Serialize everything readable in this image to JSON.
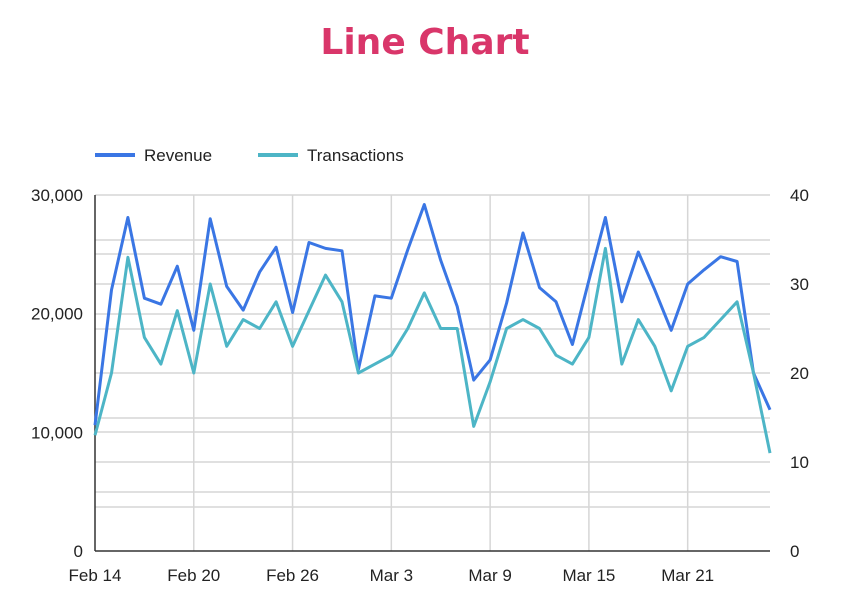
{
  "chart_data": {
    "type": "line",
    "title": "Line Chart",
    "x_tick_labels": [
      "Feb 14",
      "Feb 20",
      "Feb 26",
      "Mar 3",
      "Mar 9",
      "Mar 15",
      "Mar 21"
    ],
    "x_tick_index": [
      0,
      6,
      12,
      18,
      24,
      30,
      36
    ],
    "y_left": {
      "ylim": [
        0,
        30000
      ],
      "ticks": [
        "0",
        "10,000",
        "20,000",
        "30,000"
      ],
      "tick_values": [
        0,
        10000,
        20000,
        30000
      ]
    },
    "y_right": {
      "ylim": [
        0,
        40
      ],
      "ticks": [
        "0",
        "10",
        "20",
        "30",
        "40"
      ],
      "tick_values": [
        0,
        10,
        20,
        30,
        40
      ]
    },
    "grid": true,
    "legend_position": "top-left",
    "series": [
      {
        "name": "Revenue",
        "axis": "left",
        "color": "#3a76e4",
        "values": [
          10600,
          22000,
          28100,
          21300,
          20800,
          24000,
          18600,
          28000,
          22300,
          20300,
          23500,
          25600,
          20100,
          26000,
          25500,
          25300,
          15300,
          21500,
          21300,
          25400,
          29200,
          24500,
          20600,
          14400,
          16100,
          20900,
          26800,
          22200,
          21000,
          17400,
          22800,
          28100,
          21000,
          25200,
          22000,
          18600,
          22500,
          23700,
          24800,
          24400,
          15000,
          11900
        ]
      },
      {
        "name": "Transactions",
        "axis": "right",
        "color": "#4db5c6",
        "values": [
          13,
          20,
          33,
          24,
          21,
          27,
          20,
          30,
          23,
          26,
          25,
          28,
          23,
          27,
          31,
          28,
          20,
          21,
          22,
          25,
          29,
          25,
          25,
          14,
          19,
          25,
          26,
          25,
          22,
          21,
          24,
          34,
          21,
          26,
          23,
          18,
          23,
          24,
          26,
          28,
          20,
          11
        ]
      }
    ]
  }
}
